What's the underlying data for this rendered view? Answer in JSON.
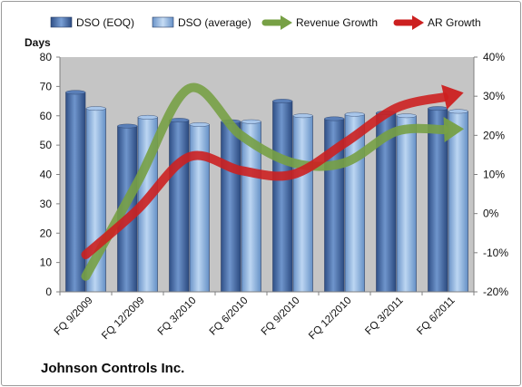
{
  "chart_data": {
    "type": "bar",
    "title": "",
    "left_axis_label": "Days",
    "categories": [
      "FQ 9/2009",
      "FQ 12/2009",
      "FQ 3/2010",
      "FQ 6/2010",
      "FQ 9/2010",
      "FQ 12/2010",
      "FQ 3/2011",
      "FQ 6/2011"
    ],
    "y_left": {
      "min": 0,
      "max": 80,
      "ticks": [
        "0",
        "10",
        "20",
        "30",
        "40",
        "50",
        "60",
        "70",
        "80"
      ]
    },
    "y_right": {
      "min": -20,
      "max": 40,
      "ticks": [
        "-20%",
        "-10%",
        "0%",
        "10%",
        "20%",
        "30%",
        "40%"
      ]
    },
    "series": [
      {
        "name": "DSO (EOQ)",
        "kind": "bar",
        "axis": "left",
        "color": "#4a6fa8",
        "values": [
          68,
          56.5,
          58.5,
          58,
          65,
          59,
          61,
          62.5
        ]
      },
      {
        "name": "DSO (average)",
        "kind": "bar",
        "axis": "left",
        "color": "#8eb3dc",
        "values": [
          62.5,
          59.5,
          57,
          58,
          60,
          60.5,
          60,
          61.5
        ]
      },
      {
        "name": "Revenue Growth",
        "kind": "trend-arrow",
        "axis": "right",
        "color": "#77a045",
        "values": [
          -16,
          8,
          32,
          20,
          13,
          13,
          21,
          21.5
        ]
      },
      {
        "name": "AR Growth",
        "kind": "trend-arrow",
        "axis": "right",
        "color": "#cc2020",
        "values": [
          -10.5,
          1,
          14.5,
          11,
          10,
          18,
          27,
          30
        ]
      }
    ],
    "legend_position": "top",
    "grid": false
  },
  "footer": {
    "company": "Johnson Controls Inc."
  }
}
